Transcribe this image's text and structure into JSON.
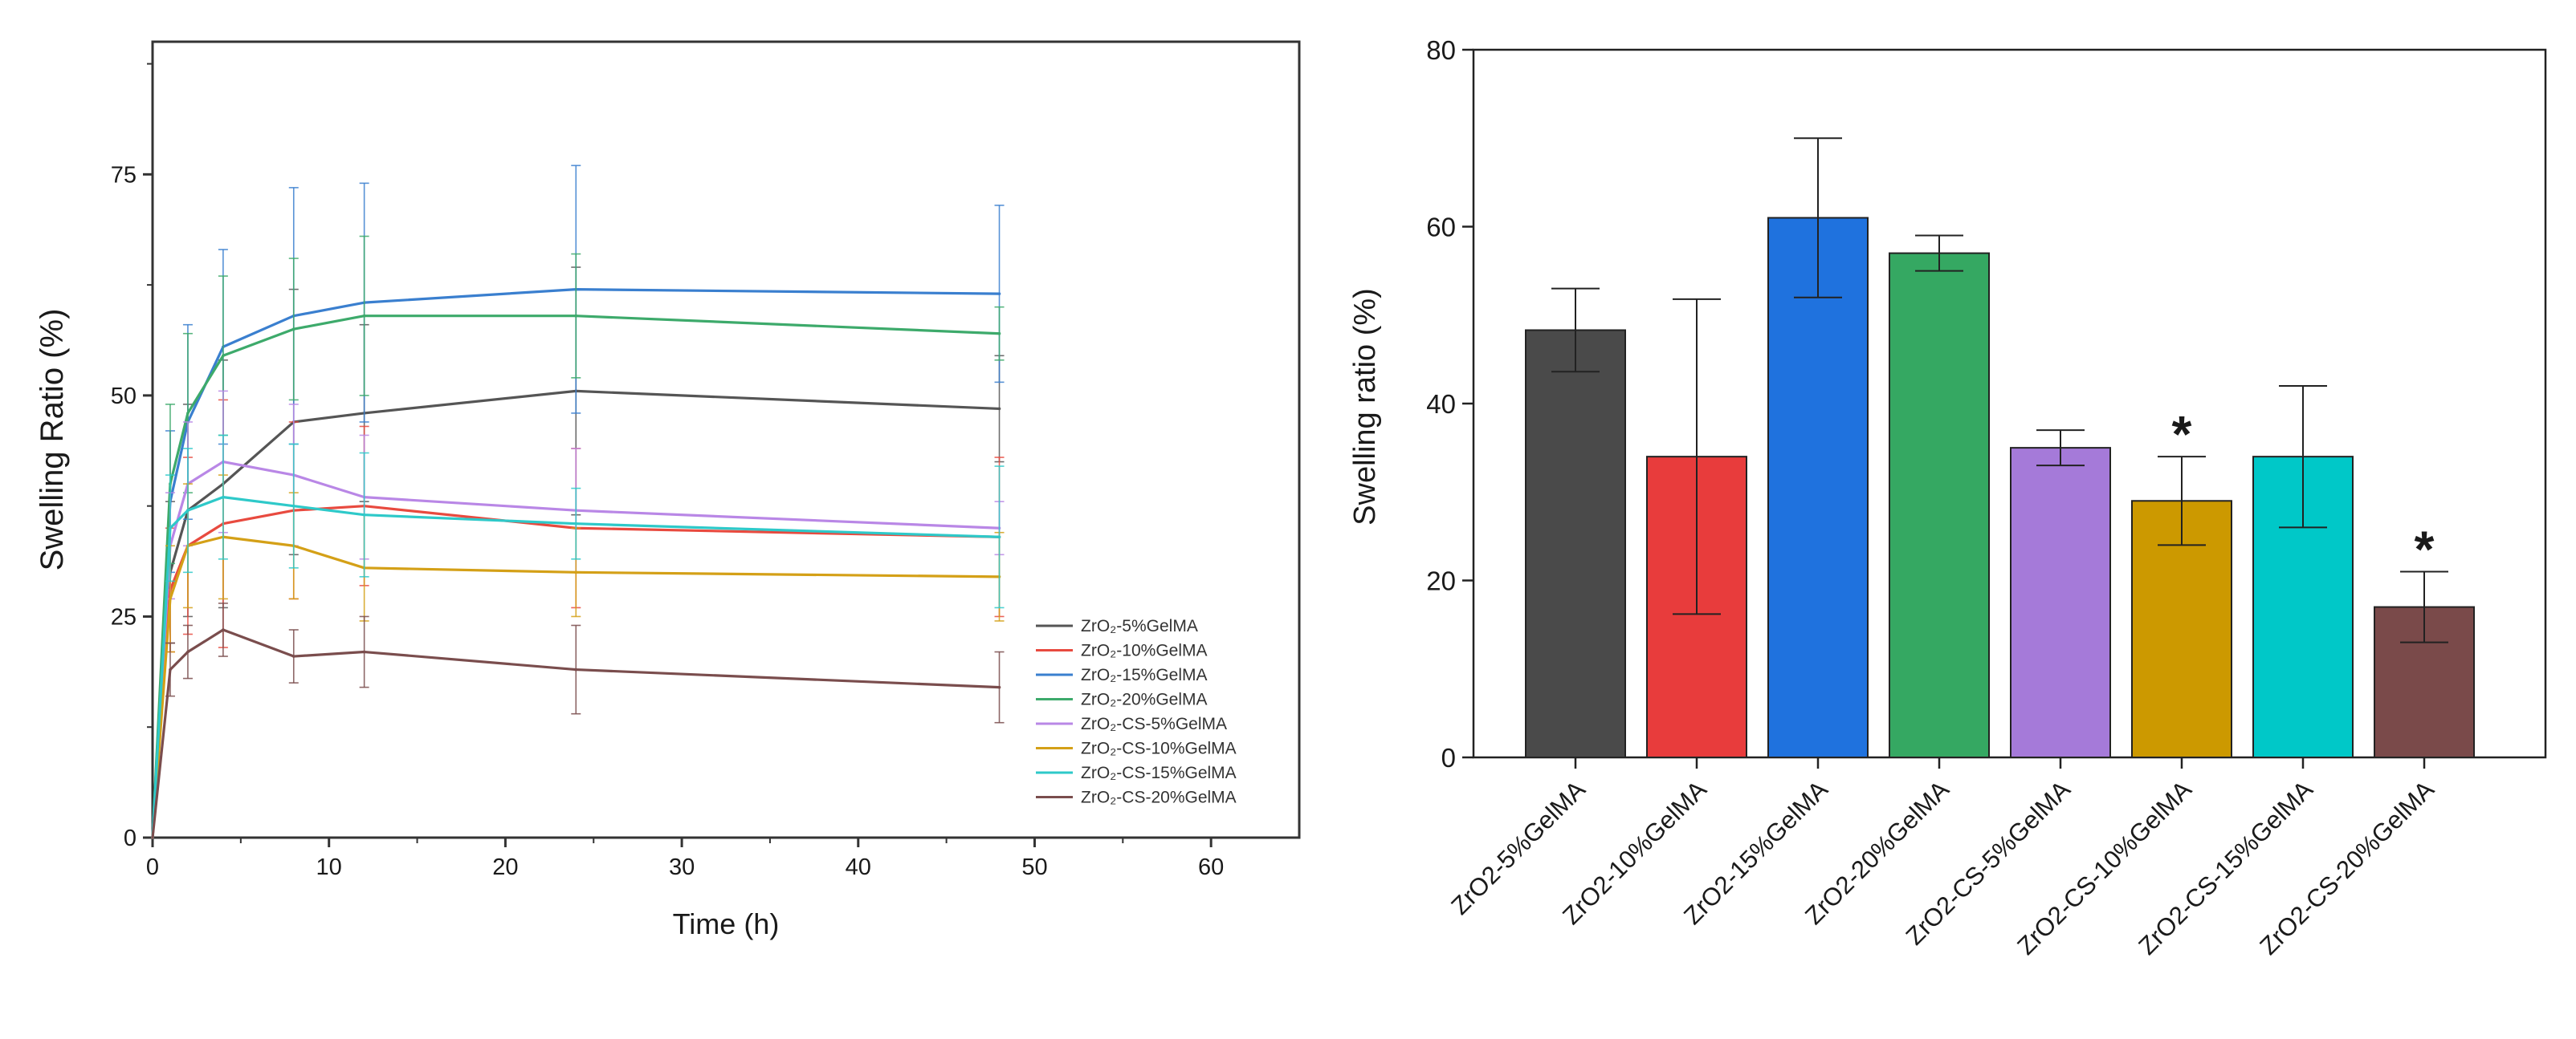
{
  "chart_data": [
    {
      "type": "line",
      "title": "",
      "xlabel": "Time (h)",
      "ylabel": "Swelling Ratio (%)",
      "xlim": [
        0,
        65
      ],
      "ylim": [
        0,
        90
      ],
      "xticks": [
        0,
        10,
        20,
        30,
        40,
        50,
        60
      ],
      "yticks": [
        0,
        25,
        50,
        75
      ],
      "x": [
        0,
        1,
        2,
        4,
        8,
        12,
        24,
        48
      ],
      "legend_position": "bottom-right",
      "series": [
        {
          "name": "ZrO₂-5%GelMA",
          "color": "#555555",
          "values": [
            0,
            30,
            37,
            40,
            47,
            48,
            50.5,
            48.5
          ],
          "errors": [
            0,
            8,
            12,
            14,
            15,
            10,
            14,
            6
          ]
        },
        {
          "name": "ZrO₂-10%GelMA",
          "color": "#e84a3f",
          "values": [
            0,
            28,
            33,
            35.5,
            37,
            37.5,
            35,
            34
          ],
          "errors": [
            0,
            7,
            10,
            14,
            10,
            9,
            9,
            9
          ]
        },
        {
          "name": "ZrO₂-15%GelMA",
          "color": "#3a7fcf",
          "values": [
            0,
            38,
            47,
            55.5,
            59,
            60.5,
            62,
            61.5
          ],
          "errors": [
            0,
            8,
            11,
            11,
            14.5,
            13.5,
            14,
            10
          ]
        },
        {
          "name": "ZrO₂-20%GelMA",
          "color": "#3daa6b",
          "values": [
            0,
            40,
            48,
            54.5,
            57.5,
            59,
            59,
            57
          ],
          "errors": [
            0,
            9,
            9,
            9,
            8,
            9,
            7,
            3
          ]
        },
        {
          "name": "ZrO₂-CS-5%GelMA",
          "color": "#b987e6",
          "values": [
            0,
            33,
            40,
            42.5,
            41,
            38.5,
            37,
            35
          ],
          "errors": [
            0,
            6,
            7,
            8,
            8,
            7,
            7,
            3
          ]
        },
        {
          "name": "ZrO₂-CS-10%GelMA",
          "color": "#d4a017",
          "values": [
            0,
            27,
            33,
            34,
            33,
            30.5,
            30,
            29.5
          ],
          "errors": [
            0,
            6,
            7,
            7,
            6,
            6,
            5,
            5
          ]
        },
        {
          "name": "ZrO₂-CS-15%GelMA",
          "color": "#2ec9c9",
          "values": [
            0,
            35,
            37,
            38.5,
            37.5,
            36.5,
            35.5,
            34
          ],
          "errors": [
            0,
            6,
            7,
            7,
            7,
            7,
            4,
            8
          ]
        },
        {
          "name": "ZrO₂-CS-20%GelMA",
          "color": "#7a4d4d",
          "values": [
            0,
            19,
            21,
            23.5,
            20.5,
            21,
            19,
            17
          ],
          "errors": [
            0,
            3,
            3,
            3,
            3,
            4,
            5,
            4
          ]
        }
      ]
    },
    {
      "type": "bar",
      "title": "",
      "xlabel": "",
      "ylabel": "Swelling ratio (%)",
      "ylim": [
        0,
        80
      ],
      "yticks": [
        0,
        20,
        40,
        60,
        80
      ],
      "categories": [
        "ZrO2-5%GelMA",
        "ZrO2-10%GelMA",
        "ZrO2-15%GelMA",
        "ZrO2-20%GelMA",
        "ZrO2-CS-5%GelMA",
        "ZrO2-CS-10%GelMA",
        "ZrO2-CS-15%GelMA",
        "ZrO2-CS-20%GelMA"
      ],
      "values": [
        48.3,
        34,
        61,
        57,
        35,
        29,
        34,
        17
      ],
      "errors": [
        4.7,
        17.8,
        9,
        2,
        2,
        5,
        8,
        4
      ],
      "colors": [
        "#4a4a4a",
        "#e83c3c",
        "#1f72de",
        "#35a862",
        "#a57ad9",
        "#cc9900",
        "#00c8c8",
        "#7a4a4a"
      ],
      "annotations": [
        "",
        "",
        "",
        "",
        "",
        "*",
        "",
        "*"
      ]
    }
  ]
}
